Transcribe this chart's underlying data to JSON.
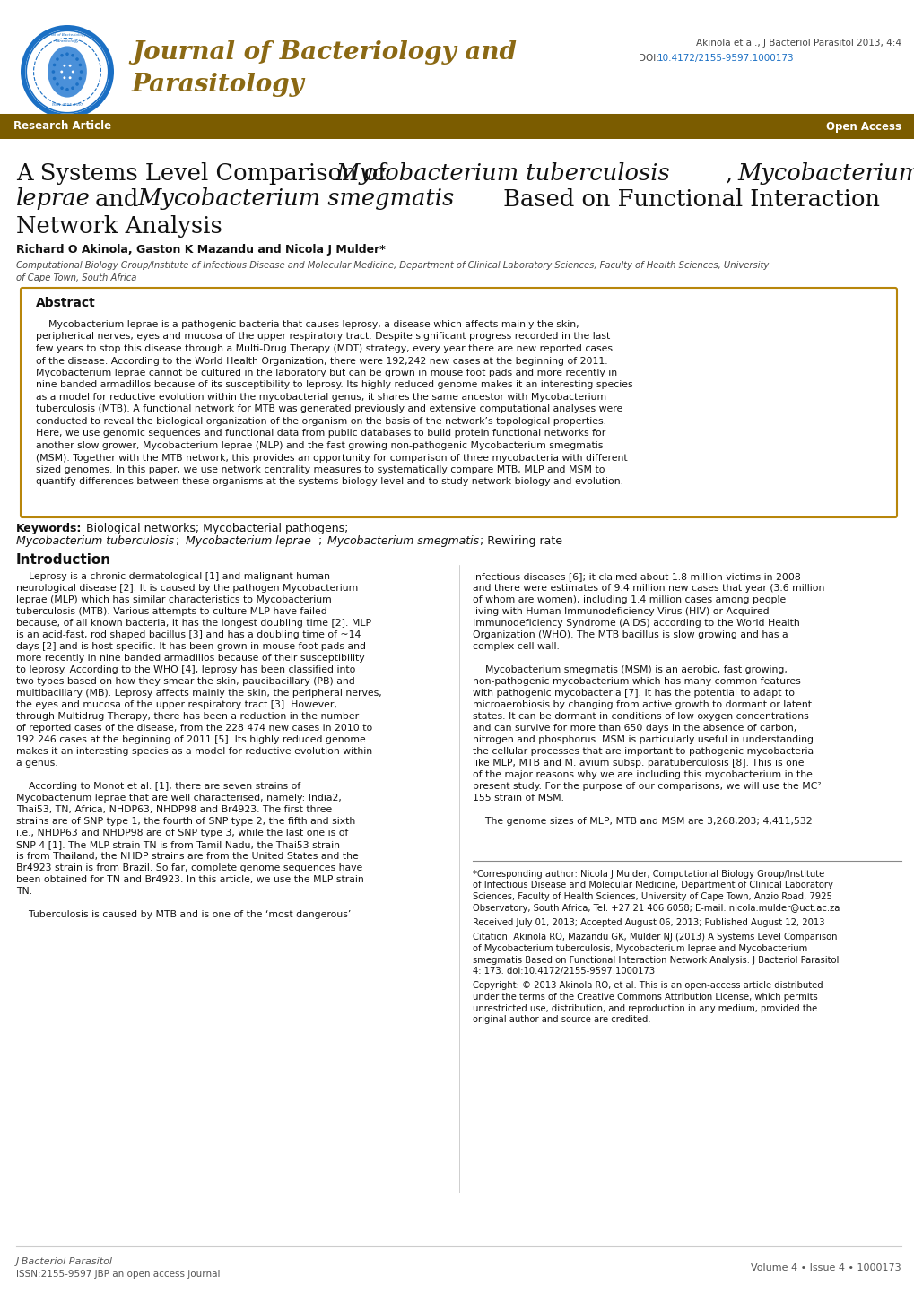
{
  "journal_name_line1": "Journal of Bacteriology and",
  "journal_name_line2": "Parasitology",
  "journal_color": "#8B6914",
  "citation": "Akinola et al., J Bacteriol Parasitol 2013, 4:4",
  "doi_prefix": "DOI: ",
  "doi_link": "10.4172/2155-9597.1000173",
  "doi_color": "#1a6fc4",
  "banner_color": "#7B5C00",
  "banner_text_left": "Research Article",
  "banner_text_right": "Open Access",
  "abstract_title": "Abstract",
  "authors": "Richard O Akinola, Gaston K Mazandu and Nicola J Mulder*",
  "affiliation1": "Computational Biology Group/Institute of Infectious Disease and Molecular Medicine, Department of Clinical Laboratory Sciences, Faculty of Health Sciences, University",
  "affiliation2": "of Cape Town, South Africa",
  "footer_left_line1": "J Bacteriol Parasitol",
  "footer_left_line2": "ISSN:2155-9597 JBP an open access journal",
  "footer_right": "Volume 4 • Issue 4 • 1000173",
  "bg_color": "#ffffff",
  "abstract_border_color": "#b8860b",
  "link_color": "#1a6fc4",
  "text_dark": "#111111",
  "text_gray": "#555555"
}
